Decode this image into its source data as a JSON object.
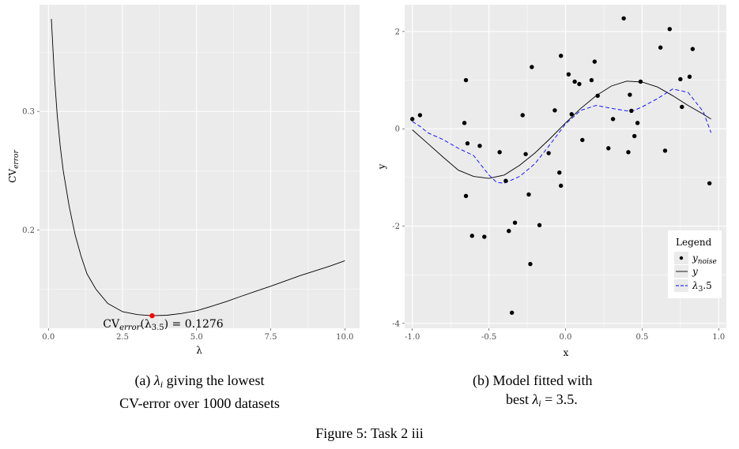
{
  "chart_data": [
    {
      "type": "line",
      "xlabel": "λ",
      "ylabel": "CV",
      "ylabel_sub": "error",
      "xlim": [
        -0.3,
        10.5
      ],
      "ylim": [
        0.117,
        0.39
      ],
      "x_ticks": [
        0.0,
        2.5,
        5.0,
        7.5,
        10.0
      ],
      "x_tick_labels": [
        "0.0",
        "2.5",
        "5.0",
        "7.5",
        "10.0"
      ],
      "y_ticks": [
        0.2,
        0.3
      ],
      "y_tick_labels": [
        "0.2",
        "0.3"
      ],
      "grid": true,
      "series": [
        {
          "style": "solid",
          "color": "#000000",
          "x": [
            0.1,
            0.2,
            0.3,
            0.4,
            0.5,
            0.7,
            0.9,
            1.1,
            1.3,
            1.6,
            2.0,
            2.5,
            3.0,
            3.5,
            4.0,
            4.5,
            5.0,
            5.5,
            6.0,
            6.5,
            7.0,
            7.5,
            8.0,
            8.5,
            9.0,
            9.5,
            10.0
          ],
          "y": [
            0.378,
            0.33,
            0.296,
            0.27,
            0.25,
            0.22,
            0.196,
            0.178,
            0.163,
            0.15,
            0.138,
            0.131,
            0.1285,
            0.1276,
            0.128,
            0.1295,
            0.1318,
            0.1355,
            0.1395,
            0.144,
            0.1482,
            0.1525,
            0.157,
            0.1615,
            0.1655,
            0.1695,
            0.174
          ]
        }
      ],
      "highlight_point": {
        "x": 3.5,
        "y": 0.1276,
        "color": "#ff0000"
      },
      "annotation": {
        "prefix": "CV",
        "sub1": "error",
        "mid": "(λ",
        "sub2": "3.5",
        "suffix": ") = 0.1276"
      }
    },
    {
      "type": "scatter",
      "xlabel": "x",
      "ylabel": "y",
      "xlim": [
        -1.05,
        1.05
      ],
      "ylim": [
        -4.1,
        2.55
      ],
      "x_ticks": [
        -1.0,
        -0.5,
        0.0,
        0.5,
        1.0
      ],
      "x_tick_labels": [
        "-1.0",
        "-0.5",
        "0.0",
        "0.5",
        "1.0"
      ],
      "y_ticks": [
        -4,
        -2,
        0,
        2
      ],
      "y_tick_labels": [
        "-4",
        "-2",
        "0",
        "2"
      ],
      "grid": true,
      "legend": {
        "title": "Legend",
        "placement": "bottom-right",
        "entries": [
          {
            "label": "y",
            "sub": "noise",
            "kind": "point"
          },
          {
            "label": "y",
            "sub": "",
            "kind": "solid"
          },
          {
            "label": "λ",
            "sub": "3",
            "suffix": ".5",
            "kind": "dashed"
          }
        ]
      },
      "series": [
        {
          "name": "y_noise",
          "kind": "point",
          "color": "#000000",
          "points": [
            [
              -1.0,
              0.2
            ],
            [
              -0.95,
              0.28
            ],
            [
              -0.66,
              0.12
            ],
            [
              -0.65,
              1.0
            ],
            [
              -0.64,
              -0.3
            ],
            [
              -0.65,
              -1.38
            ],
            [
              -0.61,
              -2.2
            ],
            [
              -0.56,
              -0.35
            ],
            [
              -0.53,
              -2.22
            ],
            [
              -0.43,
              -0.48
            ],
            [
              -0.39,
              -1.07
            ],
            [
              -0.37,
              -2.1
            ],
            [
              -0.35,
              -3.78
            ],
            [
              -0.33,
              -1.93
            ],
            [
              -0.28,
              0.28
            ],
            [
              -0.26,
              -0.52
            ],
            [
              -0.24,
              -1.35
            ],
            [
              -0.23,
              -2.78
            ],
            [
              -0.22,
              1.27
            ],
            [
              -0.17,
              -1.98
            ],
            [
              -0.11,
              -0.5
            ],
            [
              -0.07,
              0.38
            ],
            [
              -0.04,
              -0.9
            ],
            [
              -0.03,
              -1.17
            ],
            [
              -0.03,
              1.5
            ],
            [
              0.02,
              1.12
            ],
            [
              0.04,
              0.3
            ],
            [
              0.06,
              0.97
            ],
            [
              0.09,
              0.92
            ],
            [
              0.11,
              -0.23
            ],
            [
              0.17,
              1.0
            ],
            [
              0.19,
              1.38
            ],
            [
              0.21,
              0.68
            ],
            [
              0.28,
              -0.4
            ],
            [
              0.31,
              0.2
            ],
            [
              0.38,
              2.27
            ],
            [
              0.41,
              -0.48
            ],
            [
              0.42,
              0.7
            ],
            [
              0.43,
              0.37
            ],
            [
              0.45,
              -0.15
            ],
            [
              0.47,
              0.12
            ],
            [
              0.49,
              0.97
            ],
            [
              0.62,
              1.67
            ],
            [
              0.65,
              -0.45
            ],
            [
              0.68,
              2.05
            ],
            [
              0.75,
              1.02
            ],
            [
              0.76,
              0.45
            ],
            [
              0.81,
              1.07
            ],
            [
              0.83,
              1.64
            ],
            [
              0.94,
              -1.12
            ]
          ]
        },
        {
          "name": "y",
          "kind": "solid",
          "color": "#000000",
          "x": [
            -1.0,
            -0.9,
            -0.8,
            -0.7,
            -0.6,
            -0.5,
            -0.4,
            -0.3,
            -0.2,
            -0.1,
            0.0,
            0.1,
            0.2,
            0.3,
            0.4,
            0.5,
            0.6,
            0.7,
            0.8,
            0.9,
            0.95
          ],
          "y": [
            -0.02,
            -0.3,
            -0.58,
            -0.85,
            -0.98,
            -1.02,
            -0.95,
            -0.75,
            -0.5,
            -0.2,
            0.12,
            0.42,
            0.68,
            0.88,
            0.98,
            0.96,
            0.86,
            0.68,
            0.48,
            0.3,
            0.2
          ]
        },
        {
          "name": "λ3.5",
          "kind": "dashed",
          "color": "#0000ff",
          "x": [
            -1.0,
            -0.95,
            -0.9,
            -0.8,
            -0.7,
            -0.6,
            -0.5,
            -0.45,
            -0.4,
            -0.3,
            -0.2,
            -0.1,
            0.0,
            0.1,
            0.2,
            0.3,
            0.4,
            0.45,
            0.5,
            0.6,
            0.7,
            0.8,
            0.9,
            0.95
          ],
          "y": [
            0.15,
            0.05,
            -0.08,
            -0.22,
            -0.4,
            -0.55,
            -0.95,
            -1.1,
            -1.12,
            -0.98,
            -0.72,
            -0.32,
            0.1,
            0.38,
            0.48,
            0.42,
            0.37,
            0.38,
            0.45,
            0.62,
            0.82,
            0.75,
            0.35,
            -0.08
          ]
        }
      ]
    }
  ],
  "captions": {
    "a_label": "(a)",
    "a_line1_rest": "giving the lowest",
    "a_lambda": "λ",
    "a_sub": "i",
    "a_line2": "CV-error over 1000 datasets",
    "b_label": "(b) Model fitted with",
    "b_line2_pre": "best",
    "b_lambda": "λ",
    "b_sub": "i",
    "b_line2_post": "= 3.5.",
    "figure": "Figure 5: Task 2 iii"
  },
  "colors": {
    "panel": "#ebebeb",
    "grid": "#ffffff",
    "highlight": "#ff0000",
    "dashed": "#0000ff"
  }
}
